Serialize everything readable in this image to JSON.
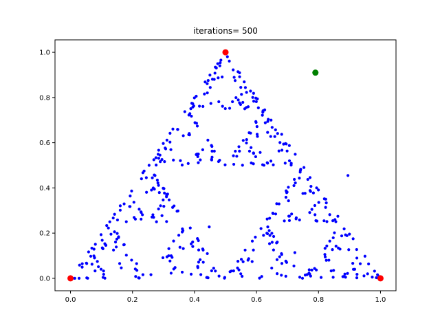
{
  "chart_data": {
    "type": "scatter",
    "title": "iterations= 500",
    "xlabel": "",
    "ylabel": "",
    "xlim": [
      -0.05,
      1.05
    ],
    "ylim": [
      -0.055,
      1.055
    ],
    "xticks": [
      "0.0",
      "0.2",
      "0.4",
      "0.6",
      "0.8",
      "1.0"
    ],
    "yticks": [
      "0.0",
      "0.2",
      "0.4",
      "0.6",
      "0.8",
      "1.0"
    ],
    "grid": false,
    "legend": "none",
    "series": [
      {
        "role": "vertices",
        "color": "#ff0000",
        "marker": "circle-large",
        "points": [
          [
            0.0,
            0.0
          ],
          [
            1.0,
            0.0
          ],
          [
            0.5,
            1.0
          ]
        ]
      },
      {
        "role": "start-point",
        "color": "#008000",
        "marker": "circle-large",
        "points": [
          [
            0.79,
            0.91
          ]
        ]
      },
      {
        "role": "chaos-game-points",
        "color": "#0000ff",
        "marker": "circle-small",
        "count": 500
      }
    ]
  }
}
